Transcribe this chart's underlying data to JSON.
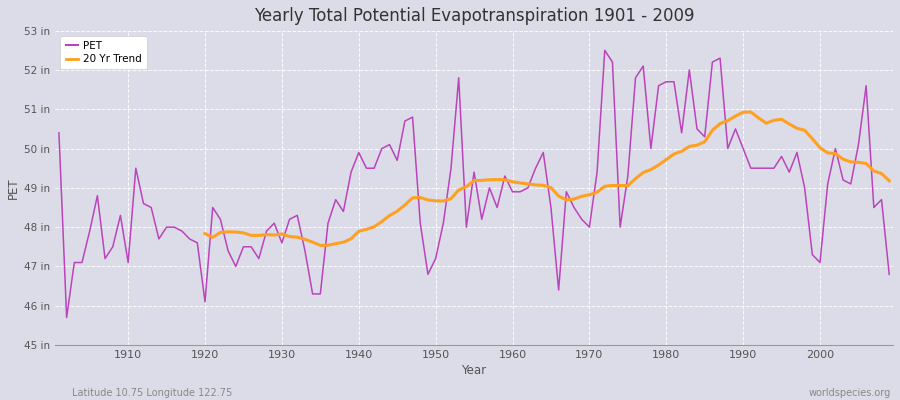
{
  "title": "Yearly Total Potential Evapotranspiration 1901 - 2009",
  "xlabel": "Year",
  "ylabel": "PET",
  "pet_color": "#bb44bb",
  "trend_color": "#ffa020",
  "bg_color": "#dcdce8",
  "grid_color": "#c8c8d8",
  "ylim": [
    45,
    53
  ],
  "ytick_labels": [
    "45 in",
    "46 in",
    "47 in",
    "48 in",
    "49 in",
    "50 in",
    "51 in",
    "52 in",
    "53 in"
  ],
  "ytick_values": [
    45,
    46,
    47,
    48,
    49,
    50,
    51,
    52,
    53
  ],
  "years": [
    1901,
    1902,
    1903,
    1904,
    1905,
    1906,
    1907,
    1908,
    1909,
    1910,
    1911,
    1912,
    1913,
    1914,
    1915,
    1916,
    1917,
    1918,
    1919,
    1920,
    1921,
    1922,
    1923,
    1924,
    1925,
    1926,
    1927,
    1928,
    1929,
    1930,
    1931,
    1932,
    1933,
    1934,
    1935,
    1936,
    1937,
    1938,
    1939,
    1940,
    1941,
    1942,
    1943,
    1944,
    1945,
    1946,
    1947,
    1948,
    1949,
    1950,
    1951,
    1952,
    1953,
    1954,
    1955,
    1956,
    1957,
    1958,
    1959,
    1960,
    1961,
    1962,
    1963,
    1964,
    1965,
    1966,
    1967,
    1968,
    1969,
    1970,
    1971,
    1972,
    1973,
    1974,
    1975,
    1976,
    1977,
    1978,
    1979,
    1980,
    1981,
    1982,
    1983,
    1984,
    1985,
    1986,
    1987,
    1988,
    1989,
    1990,
    1991,
    1992,
    1993,
    1994,
    1995,
    1996,
    1997,
    1998,
    1999,
    2000,
    2001,
    2002,
    2003,
    2004,
    2005,
    2006,
    2007,
    2008,
    2009
  ],
  "pet_values": [
    50.4,
    45.7,
    47.1,
    47.1,
    47.9,
    48.8,
    47.2,
    47.5,
    48.3,
    47.1,
    49.5,
    48.6,
    48.5,
    47.7,
    48.0,
    48.0,
    47.9,
    47.7,
    47.6,
    46.1,
    48.5,
    48.2,
    47.4,
    47.0,
    47.5,
    47.5,
    47.2,
    47.9,
    48.1,
    47.6,
    48.2,
    48.3,
    47.4,
    46.3,
    46.3,
    48.1,
    48.7,
    48.4,
    49.4,
    49.9,
    49.5,
    49.5,
    50.0,
    50.1,
    49.7,
    50.7,
    50.8,
    48.1,
    46.8,
    47.2,
    48.1,
    49.5,
    51.8,
    48.0,
    49.4,
    48.2,
    49.0,
    48.5,
    49.3,
    48.9,
    48.9,
    49.0,
    49.5,
    49.9,
    48.5,
    46.4,
    48.9,
    48.5,
    48.2,
    48.0,
    49.4,
    52.5,
    52.2,
    48.0,
    49.3,
    51.8,
    52.1,
    50.0,
    51.6,
    51.7,
    51.7,
    50.4,
    52.0,
    50.5,
    50.3,
    52.2,
    52.3,
    50.0,
    50.5,
    50.0,
    49.5,
    49.5,
    49.5,
    49.5,
    49.8,
    49.4,
    49.9,
    49.0,
    47.3,
    47.1,
    49.1,
    50.0,
    49.2,
    49.1,
    50.1,
    51.6,
    48.5,
    48.7,
    46.8
  ],
  "subtitle_left": "Latitude 10.75 Longitude 122.75",
  "subtitle_right": "worldspecies.org",
  "trend_window": 20
}
